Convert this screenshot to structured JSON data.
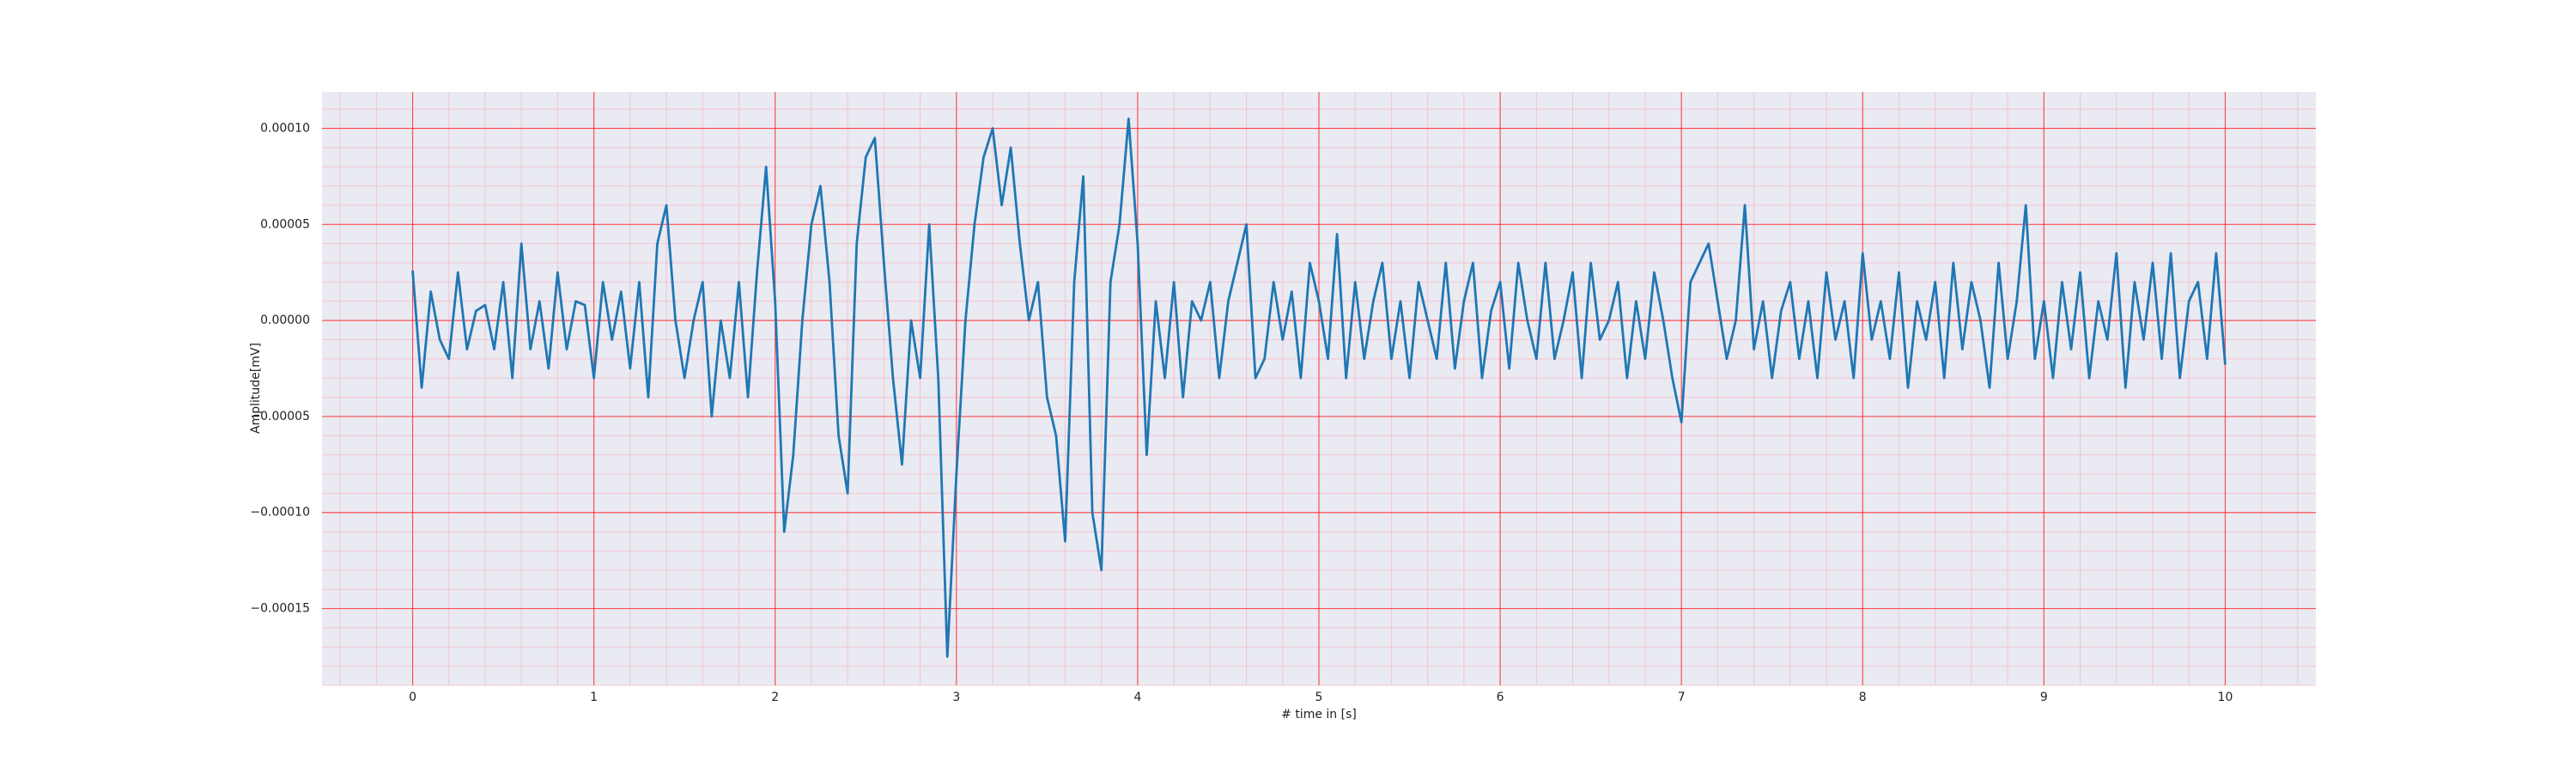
{
  "chart_data": {
    "type": "line",
    "xlabel": "# time in [s]",
    "ylabel": "Amplitude[mV]",
    "color": "#1f77b4",
    "grid": true,
    "minor_grid": true,
    "xlim": [
      -0.5,
      10.5
    ],
    "xticks": [
      0,
      1,
      2,
      3,
      4,
      5,
      6,
      7,
      8,
      9,
      10
    ],
    "ylim": [
      -0.00019,
      0.000119
    ],
    "yticks": [
      {
        "value": -0.00015,
        "label": "−0.00015"
      },
      {
        "value": -0.0001,
        "label": "−0.00010"
      },
      {
        "value": -5e-05,
        "label": "−0.00005"
      },
      {
        "value": 0,
        "label": "0.00000"
      },
      {
        "value": 5e-05,
        "label": "0.00005"
      },
      {
        "value": 0.0001,
        "label": "0.00010"
      }
    ],
    "x": [
      0,
      0.05,
      0.1,
      0.15,
      0.2,
      0.25,
      0.3,
      0.35,
      0.4,
      0.45,
      0.5,
      0.55,
      0.6,
      0.65,
      0.7,
      0.75,
      0.8,
      0.85,
      0.9,
      0.95,
      1,
      1.05,
      1.1,
      1.15,
      1.2,
      1.25,
      1.3,
      1.35,
      1.4,
      1.45,
      1.5,
      1.55,
      1.6,
      1.65,
      1.7,
      1.75,
      1.8,
      1.85,
      1.9,
      1.95,
      2,
      2.05,
      2.1,
      2.15,
      2.2,
      2.25,
      2.3,
      2.35,
      2.4,
      2.45,
      2.5,
      2.55,
      2.6,
      2.65,
      2.7,
      2.75,
      2.8,
      2.85,
      2.9,
      2.95,
      3,
      3.05,
      3.1,
      3.15,
      3.2,
      3.25,
      3.3,
      3.35,
      3.4,
      3.45,
      3.5,
      3.55,
      3.6,
      3.65,
      3.7,
      3.75,
      3.8,
      3.85,
      3.9,
      3.95,
      4,
      4.05,
      4.1,
      4.15,
      4.2,
      4.25,
      4.3,
      4.35,
      4.4,
      4.45,
      4.5,
      4.55,
      4.6,
      4.65,
      4.7,
      4.75,
      4.8,
      4.85,
      4.9,
      4.95,
      5,
      5.05,
      5.1,
      5.15,
      5.2,
      5.25,
      5.3,
      5.35,
      5.4,
      5.45,
      5.5,
      5.55,
      5.6,
      5.65,
      5.7,
      5.75,
      5.8,
      5.85,
      5.9,
      5.95,
      6,
      6.05,
      6.1,
      6.15,
      6.2,
      6.25,
      6.3,
      6.35,
      6.4,
      6.45,
      6.5,
      6.55,
      6.6,
      6.65,
      6.7,
      6.75,
      6.8,
      6.85,
      6.9,
      6.95,
      7,
      7.05,
      7.1,
      7.15,
      7.2,
      7.25,
      7.3,
      7.35,
      7.4,
      7.45,
      7.5,
      7.55,
      7.6,
      7.65,
      7.7,
      7.75,
      7.8,
      7.85,
      7.9,
      7.95,
      8,
      8.05,
      8.1,
      8.15,
      8.2,
      8.25,
      8.3,
      8.35,
      8.4,
      8.45,
      8.5,
      8.55,
      8.6,
      8.65,
      8.7,
      8.75,
      8.8,
      8.85,
      8.9,
      8.95,
      9,
      9.05,
      9.1,
      9.15,
      9.2,
      9.25,
      9.3,
      9.35,
      9.4,
      9.45,
      9.5,
      9.55,
      9.6,
      9.65,
      9.7,
      9.75,
      9.8,
      9.85,
      9.9,
      9.95,
      10
    ],
    "values": [
      2.6e-05,
      -3.5e-05,
      1.5e-05,
      -1e-05,
      -2e-05,
      2.5e-05,
      -1.5e-05,
      5e-06,
      8e-06,
      -1.5e-05,
      2e-05,
      -3e-05,
      4e-05,
      -1.5e-05,
      1e-05,
      -2.5e-05,
      2.5e-05,
      -1.5e-05,
      1e-05,
      8e-06,
      -3e-05,
      2e-05,
      -1e-05,
      1.5e-05,
      -2.5e-05,
      2e-05,
      -4e-05,
      4e-05,
      6e-05,
      0,
      -3e-05,
      0,
      2e-05,
      -5e-05,
      0,
      -3e-05,
      2e-05,
      -4e-05,
      2.5e-05,
      8e-05,
      1e-05,
      -0.00011,
      -7e-05,
      0,
      5e-05,
      7e-05,
      2e-05,
      -6e-05,
      -9e-05,
      4e-05,
      8.5e-05,
      9.5e-05,
      3e-05,
      -3e-05,
      -7.5e-05,
      0,
      -3e-05,
      5e-05,
      -3e-05,
      -0.000175,
      -8e-05,
      0,
      5e-05,
      8.5e-05,
      0.0001,
      6e-05,
      9e-05,
      4e-05,
      0,
      2e-05,
      -4e-05,
      -6e-05,
      -0.000115,
      2e-05,
      7.5e-05,
      -0.0001,
      -0.00013,
      2e-05,
      5e-05,
      0.000105,
      4e-05,
      -7e-05,
      1e-05,
      -3e-05,
      2e-05,
      -4e-05,
      1e-05,
      0,
      2e-05,
      -3e-05,
      1e-05,
      3e-05,
      5e-05,
      -3e-05,
      -2e-05,
      2e-05,
      -1e-05,
      1.5e-05,
      -3e-05,
      3e-05,
      1e-05,
      -2e-05,
      4.5e-05,
      -3e-05,
      2e-05,
      -2e-05,
      1e-05,
      3e-05,
      -2e-05,
      1e-05,
      -3e-05,
      2e-05,
      0,
      -2e-05,
      3e-05,
      -2.5e-05,
      1e-05,
      3e-05,
      -3e-05,
      5e-06,
      2e-05,
      -2.5e-05,
      3e-05,
      0,
      -2e-05,
      3e-05,
      -2e-05,
      0,
      2.5e-05,
      -3e-05,
      3e-05,
      -1e-05,
      0,
      2e-05,
      -3e-05,
      1e-05,
      -2e-05,
      2.5e-05,
      0,
      -3e-05,
      -5.3e-05,
      2e-05,
      3e-05,
      4e-05,
      1e-05,
      -2e-05,
      0,
      6e-05,
      -1.5e-05,
      1e-05,
      -3e-05,
      5e-06,
      2e-05,
      -2e-05,
      1e-05,
      -3e-05,
      2.5e-05,
      -1e-05,
      1e-05,
      -3e-05,
      3.5e-05,
      -1e-05,
      1e-05,
      -2e-05,
      2.5e-05,
      -3.5e-05,
      1e-05,
      -1e-05,
      2e-05,
      -3e-05,
      3e-05,
      -1.5e-05,
      2e-05,
      0,
      -3.5e-05,
      3e-05,
      -2e-05,
      1e-05,
      6e-05,
      -2e-05,
      1e-05,
      -3e-05,
      2e-05,
      -1.5e-05,
      2.5e-05,
      -3e-05,
      1e-05,
      -1e-05,
      3.5e-05,
      -3.5e-05,
      2e-05,
      -1e-05,
      3e-05,
      -2e-05,
      3.5e-05,
      -3e-05,
      1e-05,
      2e-05,
      -2e-05,
      3.5e-05,
      -2.3e-05
    ]
  }
}
